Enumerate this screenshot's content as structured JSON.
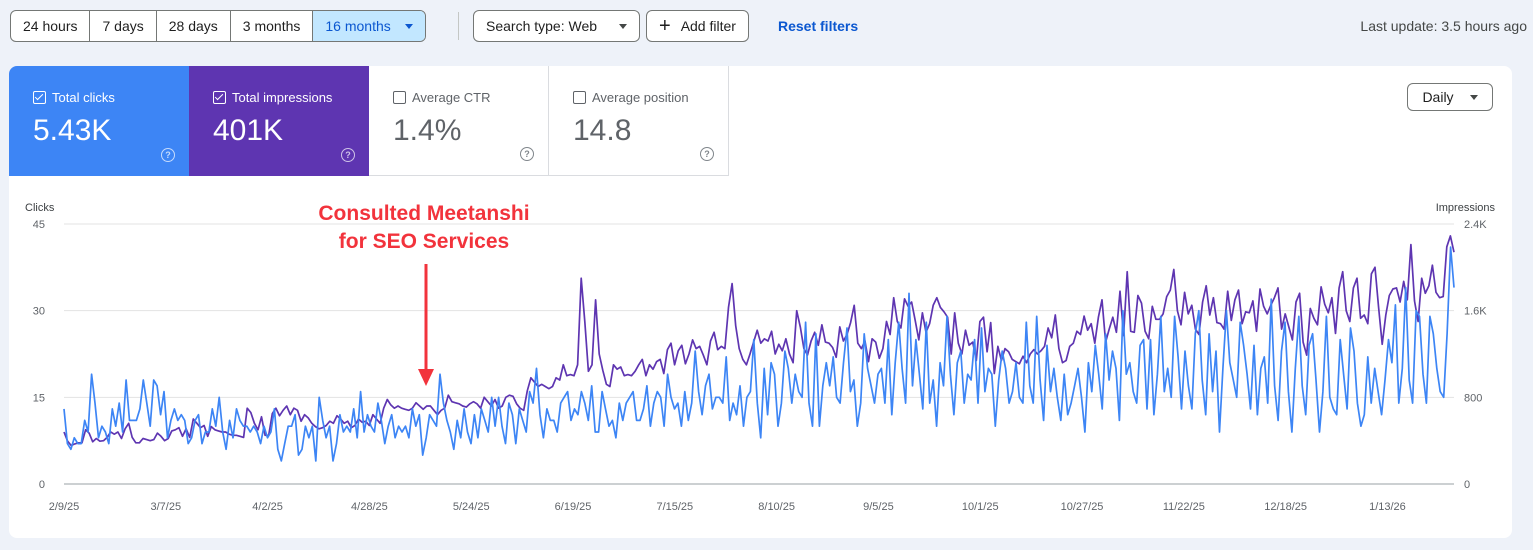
{
  "toolbar": {
    "ranges": [
      "24 hours",
      "7 days",
      "28 days",
      "3 months",
      "16 months"
    ],
    "search_type": "Search type: Web",
    "add_filter": "Add filter",
    "reset_filters": "Reset filters",
    "last_update": "Last update: 3.5 hours ago"
  },
  "metrics": {
    "clicks": {
      "label": "Total clicks",
      "value": "5.43K"
    },
    "impressions": {
      "label": "Total impressions",
      "value": "401K"
    },
    "ctr": {
      "label": "Average CTR",
      "value": "1.4%"
    },
    "position": {
      "label": "Average position",
      "value": "14.8"
    }
  },
  "granularity": "Daily",
  "colors": {
    "clicks": "#3d85f5",
    "impressions": "#5e35b1",
    "annotation": "#f2333c"
  },
  "chart_data": {
    "type": "line",
    "y_left_label": "Clicks",
    "y_right_label": "Impressions",
    "y_left_ticks": [
      "45",
      "30",
      "15",
      "0"
    ],
    "y_right_ticks": [
      "2.4K",
      "1.6K",
      "800",
      "0"
    ],
    "y_left_range": [
      0,
      45
    ],
    "y_right_range": [
      0,
      2400
    ],
    "x_ticks": [
      "2/9/25",
      "3/7/25",
      "4/2/25",
      "4/28/25",
      "5/24/25",
      "6/19/25",
      "7/15/25",
      "8/10/25",
      "9/5/25",
      "10/1/25",
      "10/27/25",
      "11/22/25",
      "12/18/25",
      "1/13/26"
    ],
    "x_start": "2/9/25",
    "x_end": "1/30/26",
    "annotation": {
      "lines": [
        "Consulted Meetanshi",
        "for SEO Services"
      ],
      "date": "5/10/25"
    },
    "series": [
      {
        "name": "Clicks",
        "axis": "left",
        "values": [
          13,
          7,
          6,
          8,
          7,
          7,
          11,
          9,
          19,
          14,
          8,
          10,
          9,
          7,
          13,
          10,
          14,
          9,
          18,
          11,
          11,
          11,
          13,
          18,
          14,
          10,
          18,
          17,
          12,
          16,
          8,
          11,
          13,
          11,
          12,
          11,
          7,
          8,
          11,
          12,
          7,
          9,
          9,
          13,
          10,
          15,
          9,
          6,
          11,
          8,
          13,
          11,
          10,
          10,
          9,
          10,
          9,
          7,
          10,
          8,
          9,
          13,
          6,
          4,
          7,
          10,
          10,
          12,
          5,
          6,
          10,
          8,
          10,
          4,
          15,
          11,
          8,
          10,
          4,
          7,
          12,
          9,
          10,
          9,
          13,
          8,
          16,
          9,
          12,
          10,
          9,
          14,
          11,
          7,
          10,
          12,
          8,
          10,
          9,
          10,
          8,
          13,
          10,
          12,
          5,
          8,
          12,
          11,
          10,
          19,
          14,
          11,
          9,
          6,
          11,
          8,
          13,
          9,
          7,
          12,
          8,
          13,
          11,
          9,
          15,
          10,
          15,
          10,
          7,
          14,
          12,
          7,
          13,
          11,
          9,
          16,
          14,
          20,
          12,
          8,
          13,
          11,
          11,
          9,
          14,
          15,
          16,
          11,
          13,
          12,
          16,
          14,
          11,
          17,
          9,
          9,
          16,
          13,
          10,
          11,
          8,
          14,
          11,
          14,
          15,
          16,
          11,
          11,
          13,
          17,
          10,
          14,
          16,
          15,
          10,
          19,
          15,
          13,
          14,
          10,
          16,
          11,
          14,
          23,
          16,
          12,
          17,
          19,
          13,
          15,
          15,
          14,
          22,
          11,
          14,
          12,
          17,
          10,
          15,
          16,
          25,
          14,
          8,
          20,
          12,
          21,
          19,
          10,
          14,
          23,
          20,
          14,
          19,
          16,
          15,
          28,
          14,
          10,
          26,
          10,
          17,
          21,
          17,
          22,
          15,
          14,
          21,
          27,
          16,
          18,
          10,
          14,
          26,
          20,
          17,
          14,
          19,
          20,
          14,
          25,
          12,
          21,
          28,
          20,
          14,
          33,
          17,
          25,
          19,
          13,
          28,
          14,
          18,
          10,
          21,
          17,
          29,
          19,
          12,
          21,
          23,
          14,
          19,
          18,
          25,
          14,
          27,
          16,
          20,
          19,
          10,
          18,
          23,
          20,
          14,
          16,
          21,
          15,
          14,
          28,
          17,
          14,
          29,
          18,
          11,
          24,
          16,
          20,
          15,
          11,
          19,
          12,
          14,
          17,
          20,
          15,
          9,
          21,
          16,
          24,
          19,
          13,
          26,
          18,
          23,
          20,
          11,
          30,
          19,
          21,
          16,
          14,
          24,
          25,
          13,
          25,
          12,
          19,
          29,
          16,
          20,
          15,
          29,
          22,
          13,
          23,
          17,
          13,
          26,
          30,
          18,
          12,
          26,
          16,
          23,
          9,
          20,
          30,
          21,
          18,
          15,
          28,
          24,
          19,
          13,
          24,
          12,
          20,
          22,
          14,
          32,
          17,
          11,
          23,
          28,
          16,
          9,
          20,
          29,
          17,
          12,
          24,
          26,
          18,
          9,
          16,
          29,
          15,
          13,
          12,
          25,
          19,
          13,
          27,
          23,
          14,
          10,
          12,
          22,
          14,
          20,
          16,
          12,
          18,
          25,
          21,
          31,
          14,
          20,
          34,
          18,
          14,
          30,
          29,
          19,
          14,
          29,
          26,
          20,
          16,
          15,
          26,
          41,
          34
        ]
      },
      {
        "name": "Impressions",
        "axis": "right",
        "values": [
          480,
          395,
          355,
          370,
          380,
          380,
          500,
          470,
          390,
          420,
          395,
          400,
          430,
          480,
          460,
          480,
          420,
          510,
          560,
          430,
          380,
          380,
          420,
          410,
          400,
          410,
          470,
          440,
          400,
          420,
          490,
          500,
          520,
          440,
          510,
          430,
          600,
          560,
          520,
          540,
          440,
          530,
          500,
          490,
          480,
          480,
          460,
          450,
          450,
          440,
          430,
          700,
          660,
          560,
          500,
          620,
          450,
          450,
          650,
          700,
          630,
          680,
          720,
          640,
          700,
          680,
          580,
          640,
          610,
          560,
          530,
          510,
          520,
          540,
          580,
          560,
          630,
          600,
          560,
          580,
          520,
          540,
          600,
          570,
          580,
          540,
          640,
          600,
          560,
          700,
          780,
          730,
          700,
          720,
          700,
          690,
          680,
          700,
          750,
          720,
          690,
          720,
          720,
          680,
          640,
          680,
          700,
          820,
          760,
          750,
          740,
          720,
          710,
          740,
          760,
          740,
          700,
          800,
          760,
          720,
          780,
          700,
          720,
          800,
          820,
          810,
          740,
          700,
          680,
          860,
          980,
          940,
          900,
          920,
          900,
          880,
          900,
          980,
          960,
          1100,
          1000,
          1010,
          1000,
          1100,
          1900,
          1500,
          1040,
          1100,
          1700,
          1200,
          1050,
          920,
          900,
          1100,
          1060,
          1080,
          1000,
          1010,
          1000,
          1040,
          1100,
          1150,
          1000,
          1100,
          1060,
          1130,
          1150,
          1020,
          1240,
          1300,
          1100,
          1230,
          1280,
          1110,
          1200,
          1330,
          1250,
          1270,
          1190,
          1100,
          1320,
          1400,
          1240,
          1270,
          1250,
          1630,
          1850,
          1460,
          1250,
          1150,
          1100,
          1200,
          1310,
          1420,
          1300,
          1340,
          1320,
          1410,
          1200,
          1290,
          1230,
          1340,
          1200,
          1120,
          1600,
          1450,
          1250,
          1190,
          1320,
          1400,
          1280,
          1470,
          1310,
          1300,
          1260,
          1170,
          1450,
          1320,
          1380,
          1490,
          1650,
          1300,
          1250,
          1320,
          1130,
          1340,
          1310,
          1160,
          1250,
          1500,
          1380,
          1720,
          1500,
          1440,
          1710,
          1640,
          1680,
          1510,
          1330,
          1580,
          1400,
          1480,
          1650,
          1720,
          1630,
          1590,
          1540,
          1200,
          1580,
          1300,
          1200,
          1420,
          1280,
          1310,
          1140,
          1500,
          1540,
          1220,
          1490,
          1020,
          1270,
          1140,
          1250,
          1220,
          1150,
          1130,
          1110,
          1180,
          1120,
          1200,
          1240,
          1200,
          1230,
          1270,
          1440,
          1350,
          1560,
          1250,
          1120,
          1140,
          1270,
          1300,
          1410,
          1380,
          1550,
          1420,
          1480,
          1300,
          1540,
          1700,
          1310,
          1430,
          1540,
          1400,
          1780,
          1370,
          1960,
          1410,
          1400,
          1740,
          1670,
          1410,
          1340,
          1640,
          1520,
          1520,
          1570,
          1730,
          1790,
          1980,
          1600,
          1470,
          1770,
          1570,
          1650,
          1430,
          1380,
          1680,
          1830,
          1560,
          1720,
          1490,
          1480,
          1430,
          1780,
          1510,
          1700,
          1790,
          1480,
          1590,
          1580,
          1690,
          1410,
          1800,
          1640,
          1570,
          1650,
          1720,
          1810,
          1430,
          1570,
          1450,
          1330,
          1680,
          1760,
          1310,
          1190,
          1620,
          1530,
          1470,
          1820,
          1660,
          1580,
          1720,
          1390,
          1810,
          1960,
          1600,
          1500,
          1810,
          1900,
          1530,
          1560,
          1480,
          1940,
          2000,
          1630,
          1290,
          1560,
          1740,
          1800,
          1810,
          1680,
          1870,
          1700,
          2210,
          1690,
          1500,
          1900,
          1760,
          1830,
          2020,
          1770,
          1720,
          1730,
          2190,
          2290,
          2140
        ]
      }
    ]
  }
}
